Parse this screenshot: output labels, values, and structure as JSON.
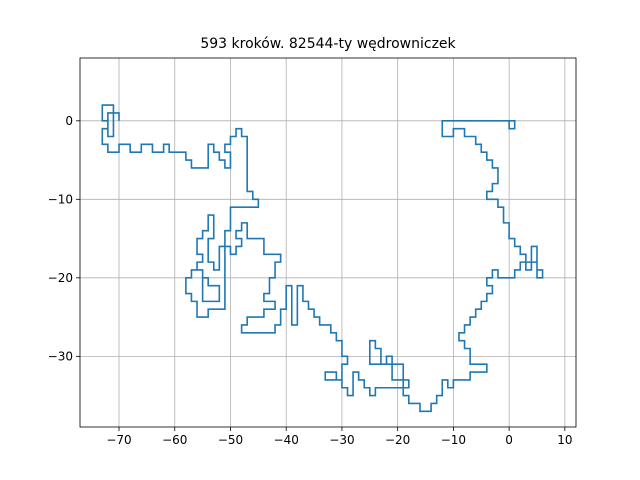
{
  "chart_data": {
    "type": "line",
    "title": "593 kroków. 82544-ty wędrowniczek",
    "xlabel": "",
    "ylabel": "",
    "xlim": [
      -77,
      12
    ],
    "ylim": [
      -39,
      8
    ],
    "xticks": [
      -70,
      -60,
      -50,
      -40,
      -30,
      -20,
      -10,
      0,
      10
    ],
    "yticks": [
      0,
      -10,
      -20,
      -30
    ],
    "xtick_labels": [
      "−70",
      "−60",
      "−50",
      "−40",
      "−30",
      "−20",
      "−10",
      "0",
      "10"
    ],
    "ytick_labels": [
      "0",
      "−10",
      "−20",
      "−30"
    ],
    "grid": true,
    "series": [
      {
        "color": "#1f77b4",
        "points": [
          [
            0,
            0
          ],
          [
            1,
            0
          ],
          [
            1,
            -1
          ],
          [
            0,
            -1
          ],
          [
            0,
            0
          ],
          [
            -12,
            0
          ],
          [
            -12,
            -2
          ],
          [
            -10,
            -2
          ],
          [
            -10,
            -1
          ],
          [
            -8,
            -1
          ],
          [
            -8,
            -2
          ],
          [
            -6,
            -2
          ],
          [
            -6,
            -3
          ],
          [
            -5,
            -3
          ],
          [
            -5,
            -4
          ],
          [
            -4,
            -4
          ],
          [
            -4,
            -5
          ],
          [
            -3,
            -5
          ],
          [
            -3,
            -6
          ],
          [
            -2,
            -6
          ],
          [
            -2,
            -7
          ],
          [
            -2,
            -8
          ],
          [
            -3,
            -8
          ],
          [
            -3,
            -9
          ],
          [
            -4,
            -9
          ],
          [
            -4,
            -10
          ],
          [
            -3,
            -10
          ],
          [
            -2,
            -10
          ],
          [
            -2,
            -11
          ],
          [
            -1,
            -11
          ],
          [
            -1,
            -13
          ],
          [
            0,
            -13
          ],
          [
            0,
            -15
          ],
          [
            1,
            -15
          ],
          [
            1,
            -16
          ],
          [
            2,
            -16
          ],
          [
            2,
            -17
          ],
          [
            3,
            -17
          ],
          [
            3,
            -18
          ],
          [
            4,
            -18
          ],
          [
            4,
            -16
          ],
          [
            5,
            -16
          ],
          [
            5,
            -19
          ],
          [
            6,
            -19
          ],
          [
            6,
            -20
          ],
          [
            5,
            -20
          ],
          [
            5,
            -18
          ],
          [
            4,
            -18
          ],
          [
            4,
            -19
          ],
          [
            3,
            -19
          ],
          [
            3,
            -18
          ],
          [
            2,
            -18
          ],
          [
            2,
            -19
          ],
          [
            1,
            -19
          ],
          [
            1,
            -20
          ],
          [
            -2,
            -20
          ],
          [
            -2,
            -19
          ],
          [
            -3,
            -19
          ],
          [
            -3,
            -20
          ],
          [
            -4,
            -20
          ],
          [
            -4,
            -21
          ],
          [
            -3,
            -21
          ],
          [
            -3,
            -22
          ],
          [
            -4,
            -22
          ],
          [
            -4,
            -23
          ],
          [
            -5,
            -23
          ],
          [
            -5,
            -24
          ],
          [
            -6,
            -24
          ],
          [
            -6,
            -25
          ],
          [
            -7,
            -25
          ],
          [
            -7,
            -26
          ],
          [
            -8,
            -26
          ],
          [
            -8,
            -27
          ],
          [
            -9,
            -27
          ],
          [
            -9,
            -28
          ],
          [
            -8,
            -28
          ],
          [
            -8,
            -29
          ],
          [
            -7,
            -29
          ],
          [
            -7,
            -31
          ],
          [
            -4,
            -31
          ],
          [
            -4,
            -32
          ],
          [
            -7,
            -32
          ],
          [
            -7,
            -33
          ],
          [
            -10,
            -33
          ],
          [
            -10,
            -34
          ],
          [
            -11,
            -34
          ],
          [
            -11,
            -33
          ],
          [
            -12,
            -33
          ],
          [
            -12,
            -35
          ],
          [
            -13,
            -35
          ],
          [
            -13,
            -36
          ],
          [
            -14,
            -36
          ],
          [
            -14,
            -37
          ],
          [
            -16,
            -37
          ],
          [
            -16,
            -36
          ],
          [
            -18,
            -36
          ],
          [
            -18,
            -35
          ],
          [
            -19,
            -35
          ],
          [
            -19,
            -31
          ],
          [
            -21,
            -31
          ],
          [
            -21,
            -30
          ],
          [
            -22,
            -30
          ],
          [
            -22,
            -31
          ],
          [
            -25,
            -31
          ],
          [
            -25,
            -28
          ],
          [
            -24,
            -28
          ],
          [
            -24,
            -29
          ],
          [
            -23,
            -29
          ],
          [
            -23,
            -31
          ],
          [
            -21,
            -31
          ],
          [
            -21,
            -33
          ],
          [
            -18,
            -33
          ],
          [
            -18,
            -34
          ],
          [
            -24,
            -34
          ],
          [
            -24,
            -35
          ],
          [
            -25,
            -35
          ],
          [
            -25,
            -34
          ],
          [
            -26,
            -34
          ],
          [
            -26,
            -33
          ],
          [
            -27,
            -33
          ],
          [
            -27,
            -32
          ],
          [
            -28,
            -32
          ],
          [
            -28,
            -35
          ],
          [
            -29,
            -35
          ],
          [
            -29,
            -34
          ],
          [
            -30,
            -34
          ],
          [
            -30,
            -33
          ],
          [
            -31,
            -33
          ],
          [
            -31,
            -32
          ],
          [
            -33,
            -32
          ],
          [
            -33,
            -33
          ],
          [
            -30,
            -33
          ],
          [
            -30,
            -31
          ],
          [
            -29,
            -31
          ],
          [
            -29,
            -30
          ],
          [
            -30,
            -30
          ],
          [
            -30,
            -28
          ],
          [
            -31,
            -28
          ],
          [
            -31,
            -27
          ],
          [
            -32,
            -27
          ],
          [
            -32,
            -26
          ],
          [
            -34,
            -26
          ],
          [
            -34,
            -25
          ],
          [
            -35,
            -25
          ],
          [
            -35,
            -24
          ],
          [
            -36,
            -24
          ],
          [
            -36,
            -23
          ],
          [
            -37,
            -23
          ],
          [
            -37,
            -21
          ],
          [
            -38,
            -21
          ],
          [
            -38,
            -26
          ],
          [
            -39,
            -26
          ],
          [
            -39,
            -21
          ],
          [
            -40,
            -21
          ],
          [
            -40,
            -24
          ],
          [
            -41,
            -24
          ],
          [
            -41,
            -26
          ],
          [
            -42,
            -26
          ],
          [
            -42,
            -27
          ],
          [
            -48,
            -27
          ],
          [
            -48,
            -26
          ],
          [
            -47,
            -26
          ],
          [
            -47,
            -25
          ],
          [
            -44,
            -25
          ],
          [
            -44,
            -24
          ],
          [
            -42,
            -24
          ],
          [
            -42,
            -23
          ],
          [
            -44,
            -23
          ],
          [
            -44,
            -22
          ],
          [
            -43,
            -22
          ],
          [
            -43,
            -20
          ],
          [
            -42,
            -20
          ],
          [
            -42,
            -18
          ],
          [
            -41,
            -18
          ],
          [
            -41,
            -17
          ],
          [
            -44,
            -17
          ],
          [
            -44,
            -15
          ],
          [
            -47,
            -15
          ],
          [
            -47,
            -13
          ],
          [
            -48,
            -13
          ],
          [
            -48,
            -14
          ],
          [
            -49,
            -14
          ],
          [
            -49,
            -15
          ],
          [
            -48,
            -15
          ],
          [
            -48,
            -16
          ],
          [
            -49,
            -16
          ],
          [
            -49,
            -17
          ],
          [
            -50,
            -17
          ],
          [
            -50,
            -16
          ],
          [
            -51,
            -16
          ],
          [
            -51,
            -24
          ],
          [
            -54,
            -24
          ],
          [
            -54,
            -25
          ],
          [
            -56,
            -25
          ],
          [
            -56,
            -23
          ],
          [
            -57,
            -23
          ],
          [
            -57,
            -22
          ],
          [
            -58,
            -22
          ],
          [
            -58,
            -20
          ],
          [
            -57,
            -20
          ],
          [
            -57,
            -19
          ],
          [
            -55,
            -19
          ],
          [
            -55,
            -20
          ],
          [
            -54,
            -20
          ],
          [
            -54,
            -21
          ],
          [
            -52,
            -21
          ],
          [
            -52,
            -23
          ],
          [
            -55,
            -23
          ],
          [
            -55,
            -19
          ],
          [
            -56,
            -19
          ],
          [
            -56,
            -18
          ],
          [
            -55,
            -18
          ],
          [
            -55,
            -17
          ],
          [
            -56,
            -17
          ],
          [
            -56,
            -15
          ],
          [
            -55,
            -15
          ],
          [
            -55,
            -14
          ],
          [
            -54,
            -14
          ],
          [
            -54,
            -12
          ],
          [
            -53,
            -12
          ],
          [
            -53,
            -15
          ],
          [
            -54,
            -15
          ],
          [
            -54,
            -18
          ],
          [
            -53,
            -18
          ],
          [
            -53,
            -19
          ],
          [
            -52,
            -19
          ],
          [
            -52,
            -16
          ],
          [
            -51,
            -16
          ],
          [
            -51,
            -14
          ],
          [
            -50,
            -14
          ],
          [
            -50,
            -11
          ],
          [
            -45,
            -11
          ],
          [
            -45,
            -10
          ],
          [
            -46,
            -10
          ],
          [
            -46,
            -9
          ],
          [
            -47,
            -9
          ],
          [
            -47,
            -6
          ],
          [
            -47,
            -2
          ],
          [
            -48,
            -2
          ],
          [
            -48,
            -1
          ],
          [
            -49,
            -1
          ],
          [
            -49,
            -2
          ],
          [
            -50,
            -2
          ],
          [
            -50,
            -3
          ],
          [
            -51,
            -3
          ],
          [
            -51,
            -4
          ],
          [
            -50,
            -4
          ],
          [
            -50,
            -6
          ],
          [
            -51,
            -6
          ],
          [
            -51,
            -5
          ],
          [
            -52,
            -5
          ],
          [
            -52,
            -4
          ],
          [
            -53,
            -4
          ],
          [
            -53,
            -3
          ],
          [
            -54,
            -3
          ],
          [
            -54,
            -6
          ],
          [
            -57,
            -6
          ],
          [
            -57,
            -5
          ],
          [
            -58,
            -5
          ],
          [
            -58,
            -4
          ],
          [
            -61,
            -4
          ],
          [
            -61,
            -3
          ],
          [
            -62,
            -3
          ],
          [
            -62,
            -4
          ],
          [
            -64,
            -4
          ],
          [
            -64,
            -3
          ],
          [
            -66,
            -3
          ],
          [
            -66,
            -4
          ],
          [
            -68,
            -4
          ],
          [
            -68,
            -3
          ],
          [
            -70,
            -3
          ],
          [
            -70,
            -4
          ],
          [
            -72,
            -4
          ],
          [
            -72,
            -3
          ],
          [
            -73,
            -3
          ],
          [
            -73,
            -1
          ],
          [
            -72,
            -1
          ],
          [
            -72,
            1
          ],
          [
            -71,
            1
          ],
          [
            -71,
            -2
          ],
          [
            -72,
            -2
          ],
          [
            -72,
            0
          ],
          [
            -73,
            0
          ],
          [
            -73,
            2
          ],
          [
            -71,
            2
          ],
          [
            -71,
            1
          ],
          [
            -70,
            1
          ],
          [
            -70,
            0
          ]
        ]
      }
    ]
  }
}
